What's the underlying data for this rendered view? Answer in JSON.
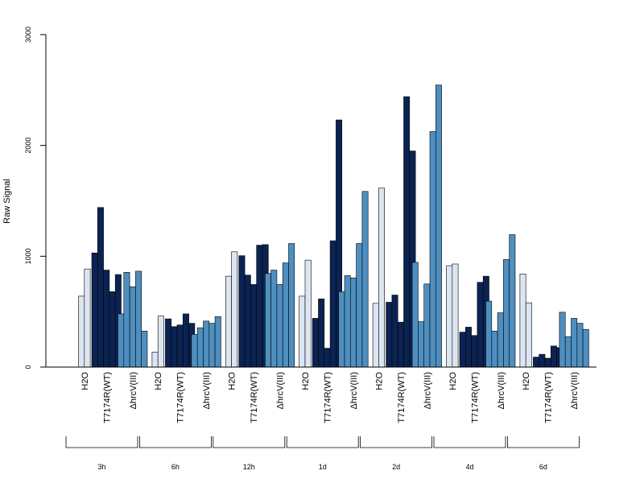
{
  "chart_data": {
    "type": "bar",
    "ylabel": "Raw Signal",
    "ylim": [
      0,
      3000
    ],
    "yticks": [
      0,
      1000,
      2000,
      3000
    ],
    "grid": false,
    "legend": "none",
    "group_labels": [
      "H2O",
      "T7174R(WT)",
      "ΔhrcV(III)"
    ],
    "timepoints": [
      "3h",
      "6h",
      "12h",
      "1d",
      "2d",
      "4d",
      "6d"
    ],
    "colors": {
      "H2O": "#dce6f2",
      "T7174R(WT)": "#0b2352",
      "ΔhrcV(III)": "#4e8fc0",
      "axis": "#000000"
    },
    "values": [
      [
        [
          640,
          885
        ],
        [
          1030,
          1440,
          875,
          680,
          835
        ],
        [
          480,
          855,
          725,
          865,
          325
        ]
      ],
      [
        [
          135,
          460
        ],
        [
          435,
          365,
          380,
          480,
          395
        ],
        [
          295,
          355,
          415,
          395,
          455
        ]
      ],
      [
        [
          820,
          1040
        ],
        [
          1005,
          830,
          745,
          1100,
          1105
        ],
        [
          845,
          875,
          745,
          940,
          1115
        ]
      ],
      [
        [
          640,
          965
        ],
        [
          440,
          615,
          170,
          1140,
          2230
        ],
        [
          680,
          825,
          805,
          1115,
          1585
        ]
      ],
      [
        [
          575,
          1615
        ],
        [
          585,
          650,
          405,
          2440,
          1950
        ],
        [
          945,
          410,
          750,
          2125,
          2545
        ]
      ],
      [
        [
          915,
          930
        ],
        [
          315,
          360,
          285,
          765,
          820
        ],
        [
          595,
          325,
          490,
          970,
          1195
        ]
      ],
      [
        [
          840,
          580
        ],
        [
          90,
          115,
          80,
          190,
          175
        ],
        [
          495,
          275,
          440,
          395,
          340
        ]
      ]
    ]
  }
}
